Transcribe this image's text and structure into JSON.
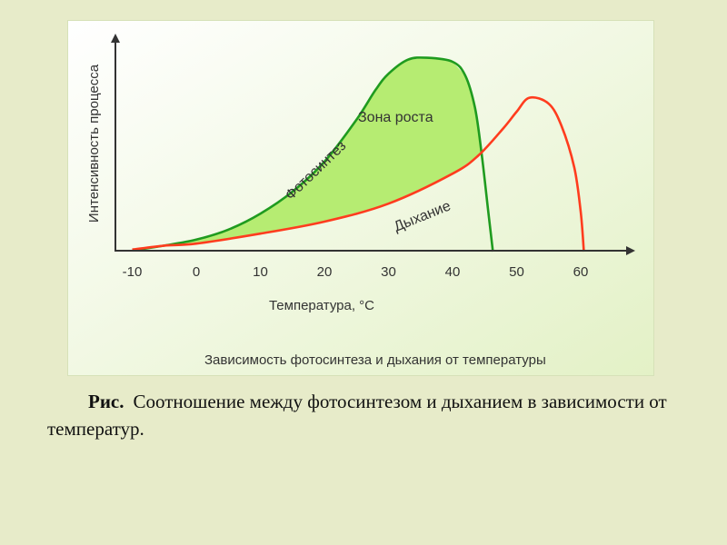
{
  "figure": {
    "background": [
      "#ffffff",
      "#e3f1c6"
    ],
    "chart_caption": "Зависимость фотосинтеза и дыхания от температуры"
  },
  "page_caption": {
    "label": "Рис.",
    "text": "Соотношение между фотосинтезом и дыханием в зависимости от температур."
  },
  "chart_data": {
    "type": "line",
    "title": "Зависимость фотосинтеза и дыхания от температуры",
    "xlabel": "Температура, °С",
    "ylabel": "Интенсивность процесса",
    "x_ticks": [
      -10,
      0,
      10,
      20,
      30,
      40,
      50,
      60
    ],
    "xlim": [
      -12,
      68
    ],
    "ylim": [
      0,
      100
    ],
    "y_ticks_shown": false,
    "grid": false,
    "legend": "none",
    "series": [
      {
        "name": "Фотосинтез",
        "color": "#1f9b1f",
        "x": [
          -9,
          -5,
          0,
          5,
          10,
          15,
          20,
          25,
          28,
          30,
          33,
          36,
          40,
          42,
          43.5,
          44.5,
          45.5,
          46.3
        ],
        "y": [
          1,
          3,
          6,
          11,
          19,
          30,
          45,
          66,
          81,
          89,
          96,
          97,
          95,
          88,
          72,
          50,
          22,
          0
        ]
      },
      {
        "name": "Дыхание",
        "color": "#ff3c1e",
        "x": [
          -10,
          -5,
          0,
          10,
          20,
          30,
          40,
          44,
          48,
          50,
          52,
          55,
          57,
          59,
          60,
          60.5
        ],
        "y": [
          1,
          3,
          4,
          9,
          15,
          24,
          39,
          48,
          62,
          70,
          77,
          74,
          63,
          42,
          20,
          0
        ]
      }
    ],
    "annotations": [
      {
        "text": "Зона роста",
        "x": 36,
        "y": 70
      }
    ],
    "shaded_region": {
      "name": "Зона роста",
      "color": "#b6ec72",
      "between": [
        "Фотосинтез",
        "Дыхание"
      ]
    },
    "axis_color": "#333333"
  }
}
